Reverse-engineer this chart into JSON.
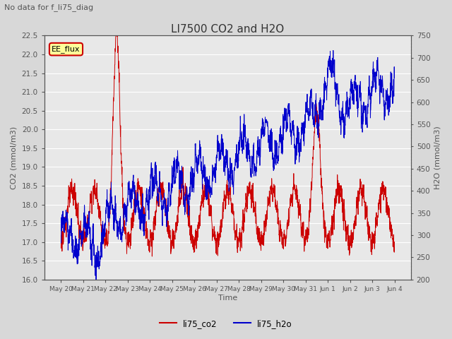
{
  "title": "LI7500 CO2 and H2O",
  "suptitle": "No data for f_li75_diag",
  "xlabel": "Time",
  "ylabel_left": "CO2 (mmol/m3)",
  "ylabel_right": "H2O (mmol/m3)",
  "ylim_left": [
    16.0,
    22.5
  ],
  "ylim_right": [
    200,
    750
  ],
  "legend_entries": [
    "li75_co2",
    "li75_h2o"
  ],
  "legend_colors": [
    "#cc0000",
    "#0000cc"
  ],
  "co2_color": "#cc0000",
  "h2o_color": "#0000cc",
  "annotation_text": "EE_flux",
  "annotation_box_color": "#ffff99",
  "annotation_border_color": "#cc0000",
  "bg_color": "#d8d8d8",
  "plot_bg_color": "#e8e8e8",
  "grid_color": "#ffffff",
  "tick_label_color": "#555555",
  "title_color": "#333333",
  "n_points": 2000,
  "yticks_left": [
    16.0,
    16.5,
    17.0,
    17.5,
    18.0,
    18.5,
    19.0,
    19.5,
    20.0,
    20.5,
    21.0,
    21.5,
    22.0,
    22.5
  ],
  "yticks_right": [
    200,
    250,
    300,
    350,
    400,
    450,
    500,
    550,
    600,
    650,
    700,
    750
  ]
}
